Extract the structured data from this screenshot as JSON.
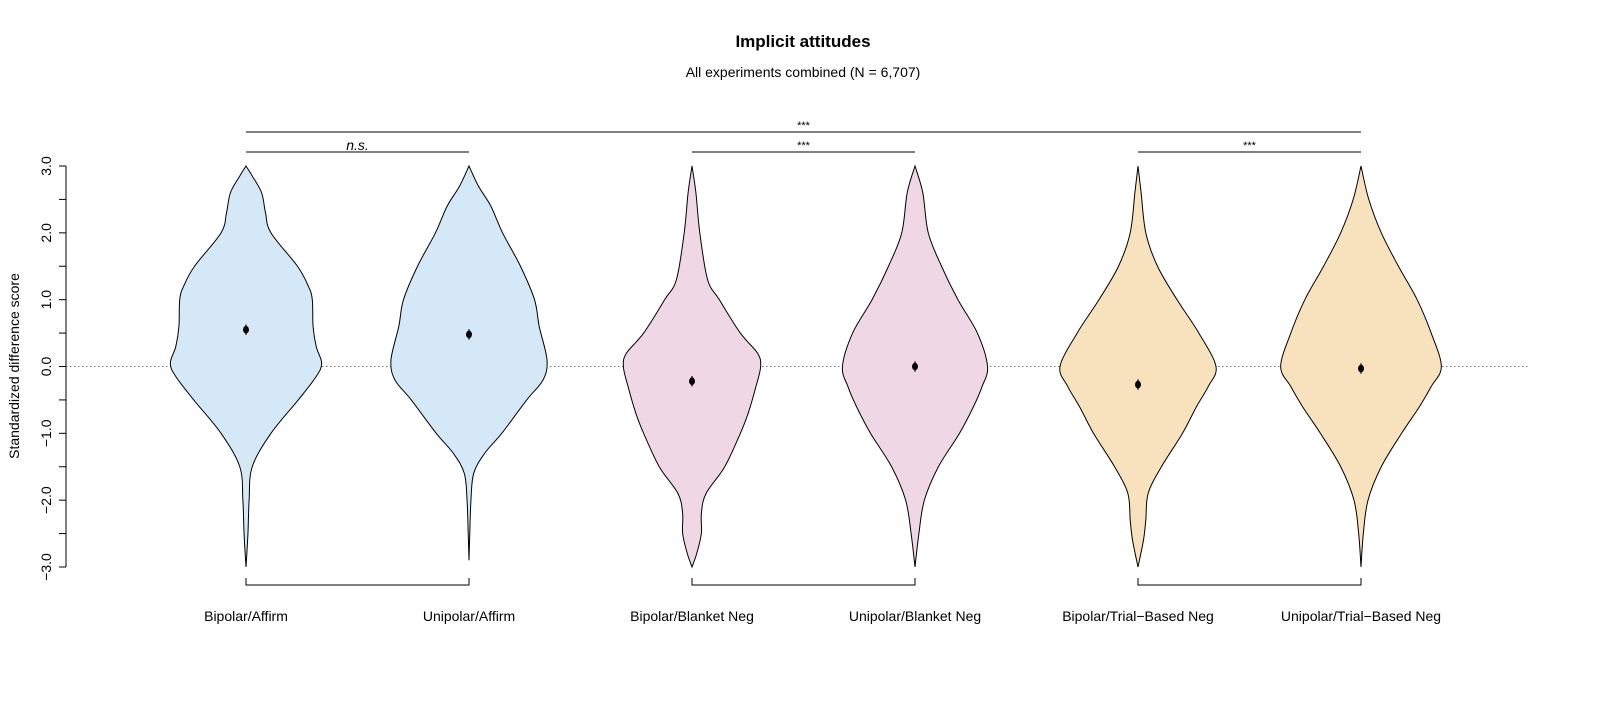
{
  "chart_data": {
    "type": "violin",
    "title": "Implicit attitudes",
    "subtitle": "All experiments combined (N = 6,707)",
    "ylabel": "Standardized difference score",
    "xlabel": "",
    "ylim": [
      -3.0,
      3.0
    ],
    "yticks": [
      -3.0,
      -2.5,
      -2.0,
      -1.5,
      -1.0,
      -0.5,
      0.0,
      0.5,
      1.0,
      1.5,
      2.0,
      2.5,
      3.0
    ],
    "ytick_labels": [
      "-3.0",
      "-2.0",
      "-1.0",
      "0.0",
      "1.0",
      "2.0",
      "3.0"
    ],
    "reference_line": 0.0,
    "grid": false,
    "colors": {
      "affirm": "#d4e8f7",
      "blanket": "#f0d7e5",
      "trial": "#f8e2bd"
    },
    "categories": [
      "Bipolar/Affirm",
      "Unipolar/Affirm",
      "Bipolar/Blanket Neg",
      "Unipolar/Blanket Neg",
      "Bipolar/Trial−Based Neg",
      "Unipolar/Trial−Based Neg"
    ],
    "groups": [
      "affirm",
      "affirm",
      "blanket",
      "blanket",
      "trial",
      "trial"
    ],
    "means": [
      0.55,
      0.48,
      -0.22,
      0.0,
      -0.27,
      -0.03
    ],
    "mean_errors": [
      0.06,
      0.06,
      0.06,
      0.06,
      0.06,
      0.06
    ],
    "density_profiles": [
      [
        [
          3.0,
          0
        ],
        [
          2.85,
          0.08
        ],
        [
          2.6,
          0.2
        ],
        [
          2.3,
          0.25
        ],
        [
          2.0,
          0.32
        ],
        [
          1.5,
          0.66
        ],
        [
          1.2,
          0.8
        ],
        [
          1.0,
          0.85
        ],
        [
          0.6,
          0.86
        ],
        [
          0.3,
          0.9
        ],
        [
          0.05,
          0.97
        ],
        [
          -0.15,
          0.9
        ],
        [
          -0.5,
          0.67
        ],
        [
          -1.0,
          0.32
        ],
        [
          -1.5,
          0.08
        ],
        [
          -2.0,
          0.04
        ],
        [
          -2.5,
          0.025
        ],
        [
          -3.0,
          0
        ]
      ],
      [
        [
          3.0,
          0
        ],
        [
          2.7,
          0.12
        ],
        [
          2.4,
          0.28
        ],
        [
          2.0,
          0.43
        ],
        [
          1.5,
          0.66
        ],
        [
          1.0,
          0.84
        ],
        [
          0.6,
          0.9
        ],
        [
          0.1,
          1.0
        ],
        [
          -0.2,
          0.95
        ],
        [
          -0.5,
          0.74
        ],
        [
          -1.0,
          0.42
        ],
        [
          -1.3,
          0.2
        ],
        [
          -1.6,
          0.06
        ],
        [
          -2.0,
          0.025
        ],
        [
          -2.5,
          0.01
        ],
        [
          -2.9,
          0
        ]
      ],
      [
        [
          3.0,
          0
        ],
        [
          2.6,
          0.05
        ],
        [
          2.0,
          0.1
        ],
        [
          1.3,
          0.2
        ],
        [
          1.0,
          0.35
        ],
        [
          0.5,
          0.62
        ],
        [
          0.2,
          0.84
        ],
        [
          0.0,
          0.88
        ],
        [
          -0.3,
          0.82
        ],
        [
          -0.7,
          0.72
        ],
        [
          -1.0,
          0.62
        ],
        [
          -1.5,
          0.42
        ],
        [
          -1.9,
          0.18
        ],
        [
          -2.2,
          0.12
        ],
        [
          -2.5,
          0.12
        ],
        [
          -2.8,
          0.06
        ],
        [
          -3.0,
          0
        ]
      ],
      [
        [
          3.0,
          0
        ],
        [
          2.6,
          0.1
        ],
        [
          2.0,
          0.17
        ],
        [
          1.5,
          0.34
        ],
        [
          1.0,
          0.55
        ],
        [
          0.5,
          0.8
        ],
        [
          0.0,
          0.93
        ],
        [
          -0.3,
          0.86
        ],
        [
          -0.6,
          0.75
        ],
        [
          -1.0,
          0.57
        ],
        [
          -1.5,
          0.3
        ],
        [
          -2.0,
          0.12
        ],
        [
          -2.5,
          0.05
        ],
        [
          -3.0,
          0
        ]
      ],
      [
        [
          3.0,
          0
        ],
        [
          2.6,
          0.04
        ],
        [
          2.0,
          0.1
        ],
        [
          1.5,
          0.25
        ],
        [
          1.0,
          0.5
        ],
        [
          0.5,
          0.78
        ],
        [
          0.0,
          1.0
        ],
        [
          -0.3,
          0.9
        ],
        [
          -0.6,
          0.75
        ],
        [
          -1.0,
          0.57
        ],
        [
          -1.5,
          0.3
        ],
        [
          -1.9,
          0.13
        ],
        [
          -2.3,
          0.1
        ],
        [
          -2.6,
          0.07
        ],
        [
          -3.0,
          0
        ]
      ],
      [
        [
          3.0,
          0
        ],
        [
          2.5,
          0.1
        ],
        [
          2.0,
          0.26
        ],
        [
          1.5,
          0.48
        ],
        [
          1.0,
          0.72
        ],
        [
          0.5,
          0.9
        ],
        [
          0.0,
          1.03
        ],
        [
          -0.3,
          0.9
        ],
        [
          -0.6,
          0.75
        ],
        [
          -1.0,
          0.52
        ],
        [
          -1.5,
          0.26
        ],
        [
          -2.0,
          0.09
        ],
        [
          -2.5,
          0.03
        ],
        [
          -3.0,
          0
        ]
      ]
    ],
    "significance": [
      {
        "from": 0,
        "to": 5,
        "label": "***",
        "italic": false
      },
      {
        "from": 0,
        "to": 1,
        "label": "n.s.",
        "italic": true
      },
      {
        "from": 2,
        "to": 3,
        "label": "***",
        "italic": false
      },
      {
        "from": 4,
        "to": 5,
        "label": "***",
        "italic": false
      }
    ]
  }
}
